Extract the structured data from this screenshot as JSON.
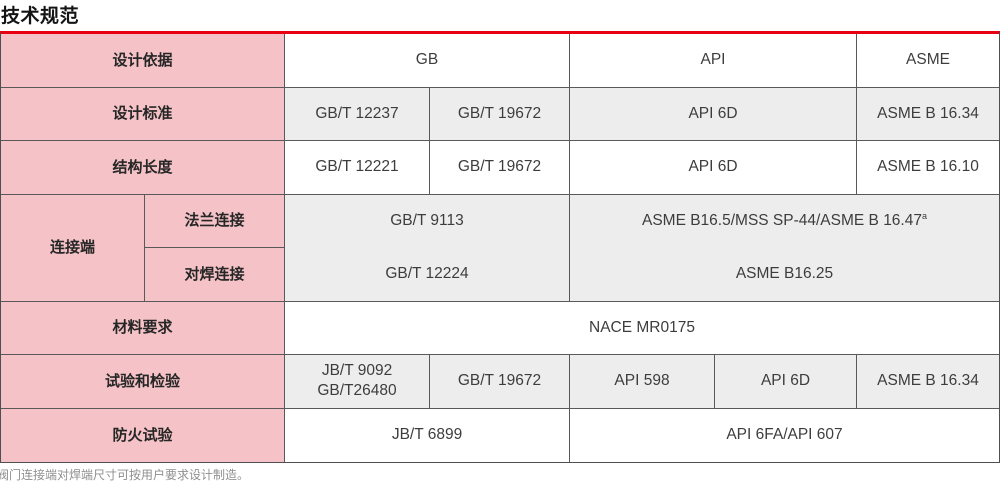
{
  "title": "技术规范",
  "footnote": "阀门连接端对焊端尺寸可按用户要求设计制造。",
  "colors": {
    "accent_red": "#e60012",
    "header_pink": "#f5c3c7",
    "row_gray": "#ededed",
    "row_white": "#ffffff",
    "border_dark": "#4f4f4f",
    "cell_text": "#3d3d3d",
    "footnote_gray": "#8f8f8f"
  },
  "table": {
    "sup_a": "a",
    "rows": [
      {
        "header": "设计依据",
        "cells": [
          {
            "text": "GB"
          },
          {
            "text": "API"
          },
          {
            "text": "ASME"
          }
        ]
      },
      {
        "header": "设计标准",
        "cells": [
          {
            "text": "GB/T 12237"
          },
          {
            "text": "GB/T 19672"
          },
          {
            "text": "API 6D"
          },
          {
            "text": "ASME B 16.34"
          }
        ]
      },
      {
        "header": "结构长度",
        "cells": [
          {
            "text": "GB/T 12221"
          },
          {
            "text": "GB/T 19672"
          },
          {
            "text": "API 6D"
          },
          {
            "text": "ASME B 16.10"
          }
        ]
      },
      {
        "header": "连接端",
        "sub_header": "法兰连接",
        "cells": [
          {
            "text": "GB/T 9113"
          },
          {
            "text": "ASME B16.5/MSS SP-44/ASME B 16.47"
          }
        ]
      },
      {
        "sub_header": "对焊连接",
        "cells": [
          {
            "text": "GB/T 12224"
          },
          {
            "text": "ASME B16.25"
          }
        ]
      },
      {
        "header": "材料要求",
        "cells": [
          {
            "text": "NACE MR0175"
          }
        ]
      },
      {
        "header": "试验和检验",
        "cells": [
          {
            "text": "JB/T 9092\nGB/T26480"
          },
          {
            "text": "GB/T 19672"
          },
          {
            "text": "API 598"
          },
          {
            "text": "API 6D"
          },
          {
            "text": "ASME B 16.34"
          }
        ]
      },
      {
        "header": "防火试验",
        "cells": [
          {
            "text": "JB/T 6899"
          },
          {
            "text": "API 6FA/API 607"
          }
        ]
      }
    ]
  }
}
